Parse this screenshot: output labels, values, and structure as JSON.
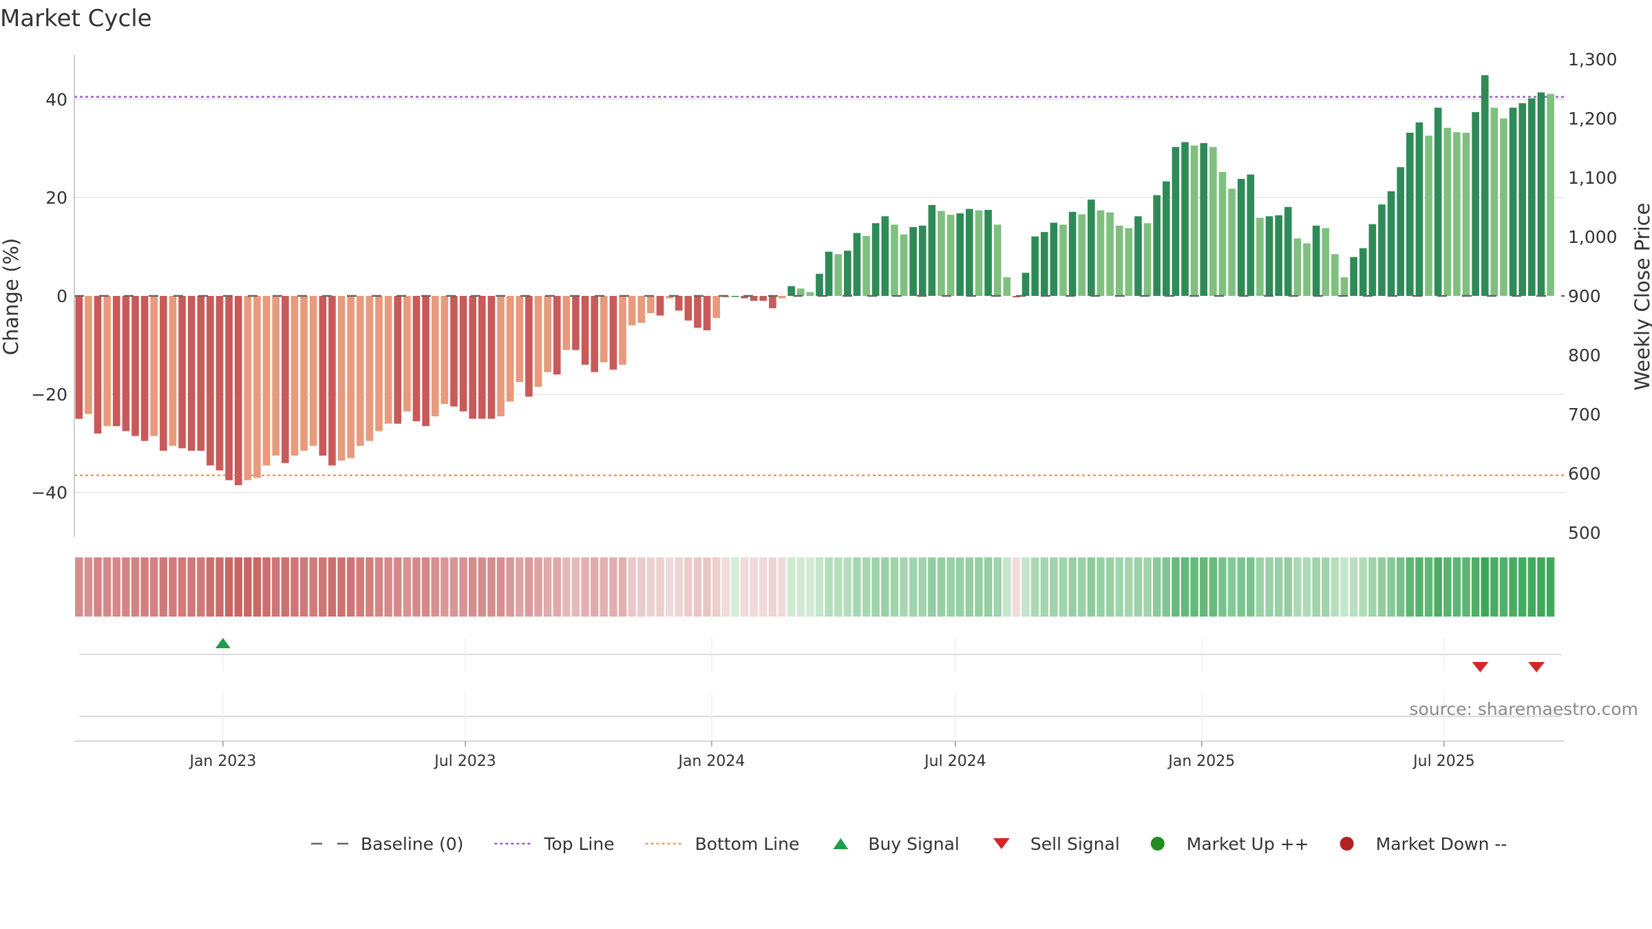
{
  "chart_data": {
    "type": "bar",
    "title": "Market Cycle",
    "ylabel": "Change (%)",
    "y2label": "Weekly Close Price",
    "source": "source: sharemaestro.com",
    "ylim": [
      -49,
      49
    ],
    "y2lim": [
      500,
      1300
    ],
    "y_ticks": [
      40,
      20,
      0,
      -20,
      -40
    ],
    "y_tick_labels": [
      "40",
      "20",
      "0",
      "−20",
      "−40"
    ],
    "y2_ticks": [
      1300,
      1200,
      1100,
      1000,
      900,
      800,
      700,
      600,
      500
    ],
    "y2_tick_labels": [
      "1,300",
      "1,200",
      "1,100",
      "1,000",
      "900",
      "800",
      "700",
      "600",
      "500"
    ],
    "x_range": [
      "2022-09-12",
      "2025-09-29"
    ],
    "x_tick_dates": [
      "2023-01-01",
      "2023-07-01",
      "2024-01-01",
      "2024-07-01",
      "2025-01-01",
      "2025-07-01"
    ],
    "x_tick_labels": [
      "Jan 2023",
      "Jul 2023",
      "Jan 2024",
      "Jul 2024",
      "Jan 2025",
      "Jul 2025"
    ],
    "top_line": 40.5,
    "bottom_line": -36.5,
    "baseline": 0,
    "start_date": "2022-09-12",
    "week_values": [
      -25,
      -24,
      -28,
      -26.5,
      -26.5,
      -27.5,
      -28.5,
      -29.5,
      -28.5,
      -31.5,
      -30.5,
      -31,
      -31.5,
      -31.5,
      -34.5,
      -35.5,
      -37.5,
      -38.5,
      -37.5,
      -37,
      -34.5,
      -32.5,
      -34,
      -32.5,
      -31.5,
      -30.5,
      -32.5,
      -34.5,
      -33.5,
      -33,
      -30.5,
      -29.5,
      -27.5,
      -26,
      -26,
      -23.5,
      -25.5,
      -26.5,
      -24.5,
      -22,
      -22.5,
      -23.5,
      -25,
      -25,
      -25,
      -24.5,
      -21.5,
      -17.5,
      -20.5,
      -18.5,
      -15.5,
      -16,
      -11,
      -11,
      -14,
      -15.5,
      -13.5,
      -15,
      -14,
      -6,
      -5.5,
      -3.5,
      -4,
      -0.5,
      -3,
      -5,
      -6.5,
      -7,
      -4.5,
      -0.3,
      0,
      -0.5,
      -1,
      -1,
      -2.5,
      -0.5,
      2,
      1.5,
      0.8,
      4.5,
      9,
      8.5,
      9.2,
      12.8,
      12.2,
      14.8,
      16.2,
      14.5,
      12.5,
      14,
      14.3,
      18.5,
      17.3,
      16.5,
      16.8,
      17.7,
      17.4,
      17.5,
      14.5,
      3.8,
      -0.3,
      4.7,
      12.1,
      13,
      14.9,
      14.5,
      17.1,
      16.6,
      19.6,
      17.4,
      17,
      14.3,
      13.8,
      16.2,
      14.8,
      20.5,
      23.3,
      30.3,
      31.3,
      30.6,
      31.1,
      30.3,
      25.2,
      21.8,
      23.8,
      24.7,
      15.9,
      16.2,
      16.4,
      18.1,
      11.7,
      10.7,
      14.3,
      13.8,
      8.5,
      3.8,
      7.9,
      9.7,
      14.6,
      18.6,
      21.3,
      26.2,
      33.2,
      35.3,
      32.6,
      38.3,
      34.2,
      33.3,
      33.2,
      37.4,
      44.9,
      38.3,
      36.1,
      38.3,
      39.2,
      40.2,
      41.4,
      41.1
    ],
    "weekly_close_price": [],
    "signals": [
      {
        "type": "buy",
        "date": "2023-01-01"
      },
      {
        "type": "sell",
        "date": "2025-07-28"
      },
      {
        "type": "sell",
        "date": "2025-09-08"
      }
    ],
    "legend_position": "bottom",
    "legend": [
      {
        "kind": "baseline",
        "label": "Baseline (0)"
      },
      {
        "kind": "top",
        "label": "Top Line"
      },
      {
        "kind": "bottom",
        "label": "Bottom Line"
      },
      {
        "kind": "buy",
        "label": "Buy Signal"
      },
      {
        "kind": "sell",
        "label": "Sell Signal"
      },
      {
        "kind": "up",
        "label": "Market Up ++"
      },
      {
        "kind": "down",
        "label": "Market Down --"
      }
    ],
    "colors": {
      "red_dark": "#c85a5a",
      "red_light": "#e79a7c",
      "green_dark": "#2e8b57",
      "green_light": "#7fc07f",
      "top_line": "#9b59d0",
      "bottom_line": "#e0a060",
      "baseline": "#666666",
      "buy": "#1e9e4a",
      "sell": "#d62728",
      "market_up": "#228b22",
      "market_down": "#b22222"
    }
  }
}
